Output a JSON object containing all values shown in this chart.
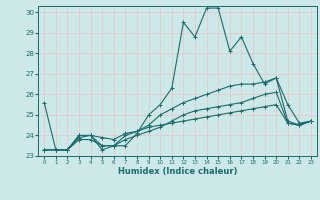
{
  "xlabel": "Humidex (Indice chaleur)",
  "background_color": "#cce8e8",
  "grid_color": "#e8c8c8",
  "line_color": "#1a6b6b",
  "xlim": [
    -0.5,
    23.5
  ],
  "ylim": [
    23,
    30.3
  ],
  "yticks": [
    23,
    24,
    25,
    26,
    27,
    28,
    29,
    30
  ],
  "xticks": [
    0,
    1,
    2,
    3,
    4,
    5,
    6,
    7,
    8,
    9,
    10,
    11,
    12,
    13,
    14,
    15,
    16,
    17,
    18,
    19,
    20,
    21,
    22,
    23
  ],
  "line1_x": [
    0,
    1,
    2,
    3,
    4,
    5,
    6,
    7,
    8,
    9,
    10,
    11,
    12,
    13,
    14,
    15,
    16,
    17,
    18,
    19,
    20,
    21,
    22,
    23
  ],
  "line1_y": [
    25.6,
    23.3,
    23.3,
    23.9,
    24.0,
    23.3,
    23.5,
    23.5,
    24.1,
    25.0,
    25.5,
    26.3,
    29.5,
    28.8,
    30.2,
    30.2,
    28.1,
    28.8,
    27.5,
    26.5,
    26.8,
    25.5,
    24.6,
    24.7
  ],
  "line2_x": [
    0,
    1,
    2,
    3,
    4,
    5,
    6,
    7,
    8,
    9,
    10,
    11,
    12,
    13,
    14,
    15,
    16,
    17,
    18,
    19,
    20,
    21,
    22,
    23
  ],
  "line2_y": [
    23.3,
    23.3,
    23.3,
    24.0,
    24.0,
    23.5,
    23.5,
    24.0,
    24.2,
    24.5,
    25.0,
    25.3,
    25.6,
    25.8,
    26.0,
    26.2,
    26.4,
    26.5,
    26.5,
    26.6,
    26.8,
    24.7,
    24.5,
    24.7
  ],
  "line3_x": [
    0,
    1,
    2,
    3,
    4,
    5,
    6,
    7,
    8,
    9,
    10,
    11,
    12,
    13,
    14,
    15,
    16,
    17,
    18,
    19,
    20,
    21,
    22,
    23
  ],
  "line3_y": [
    23.3,
    23.3,
    23.3,
    23.8,
    23.8,
    23.5,
    23.5,
    23.8,
    24.0,
    24.2,
    24.4,
    24.7,
    25.0,
    25.2,
    25.3,
    25.4,
    25.5,
    25.6,
    25.8,
    26.0,
    26.1,
    24.6,
    24.5,
    24.7
  ],
  "line4_x": [
    0,
    1,
    2,
    3,
    4,
    5,
    6,
    7,
    8,
    9,
    10,
    11,
    12,
    13,
    14,
    15,
    16,
    17,
    18,
    19,
    20,
    21,
    22,
    23
  ],
  "line4_y": [
    23.3,
    23.3,
    23.3,
    24.0,
    24.0,
    23.9,
    23.8,
    24.1,
    24.2,
    24.4,
    24.5,
    24.6,
    24.7,
    24.8,
    24.9,
    25.0,
    25.1,
    25.2,
    25.3,
    25.4,
    25.5,
    24.6,
    24.5,
    24.7
  ]
}
